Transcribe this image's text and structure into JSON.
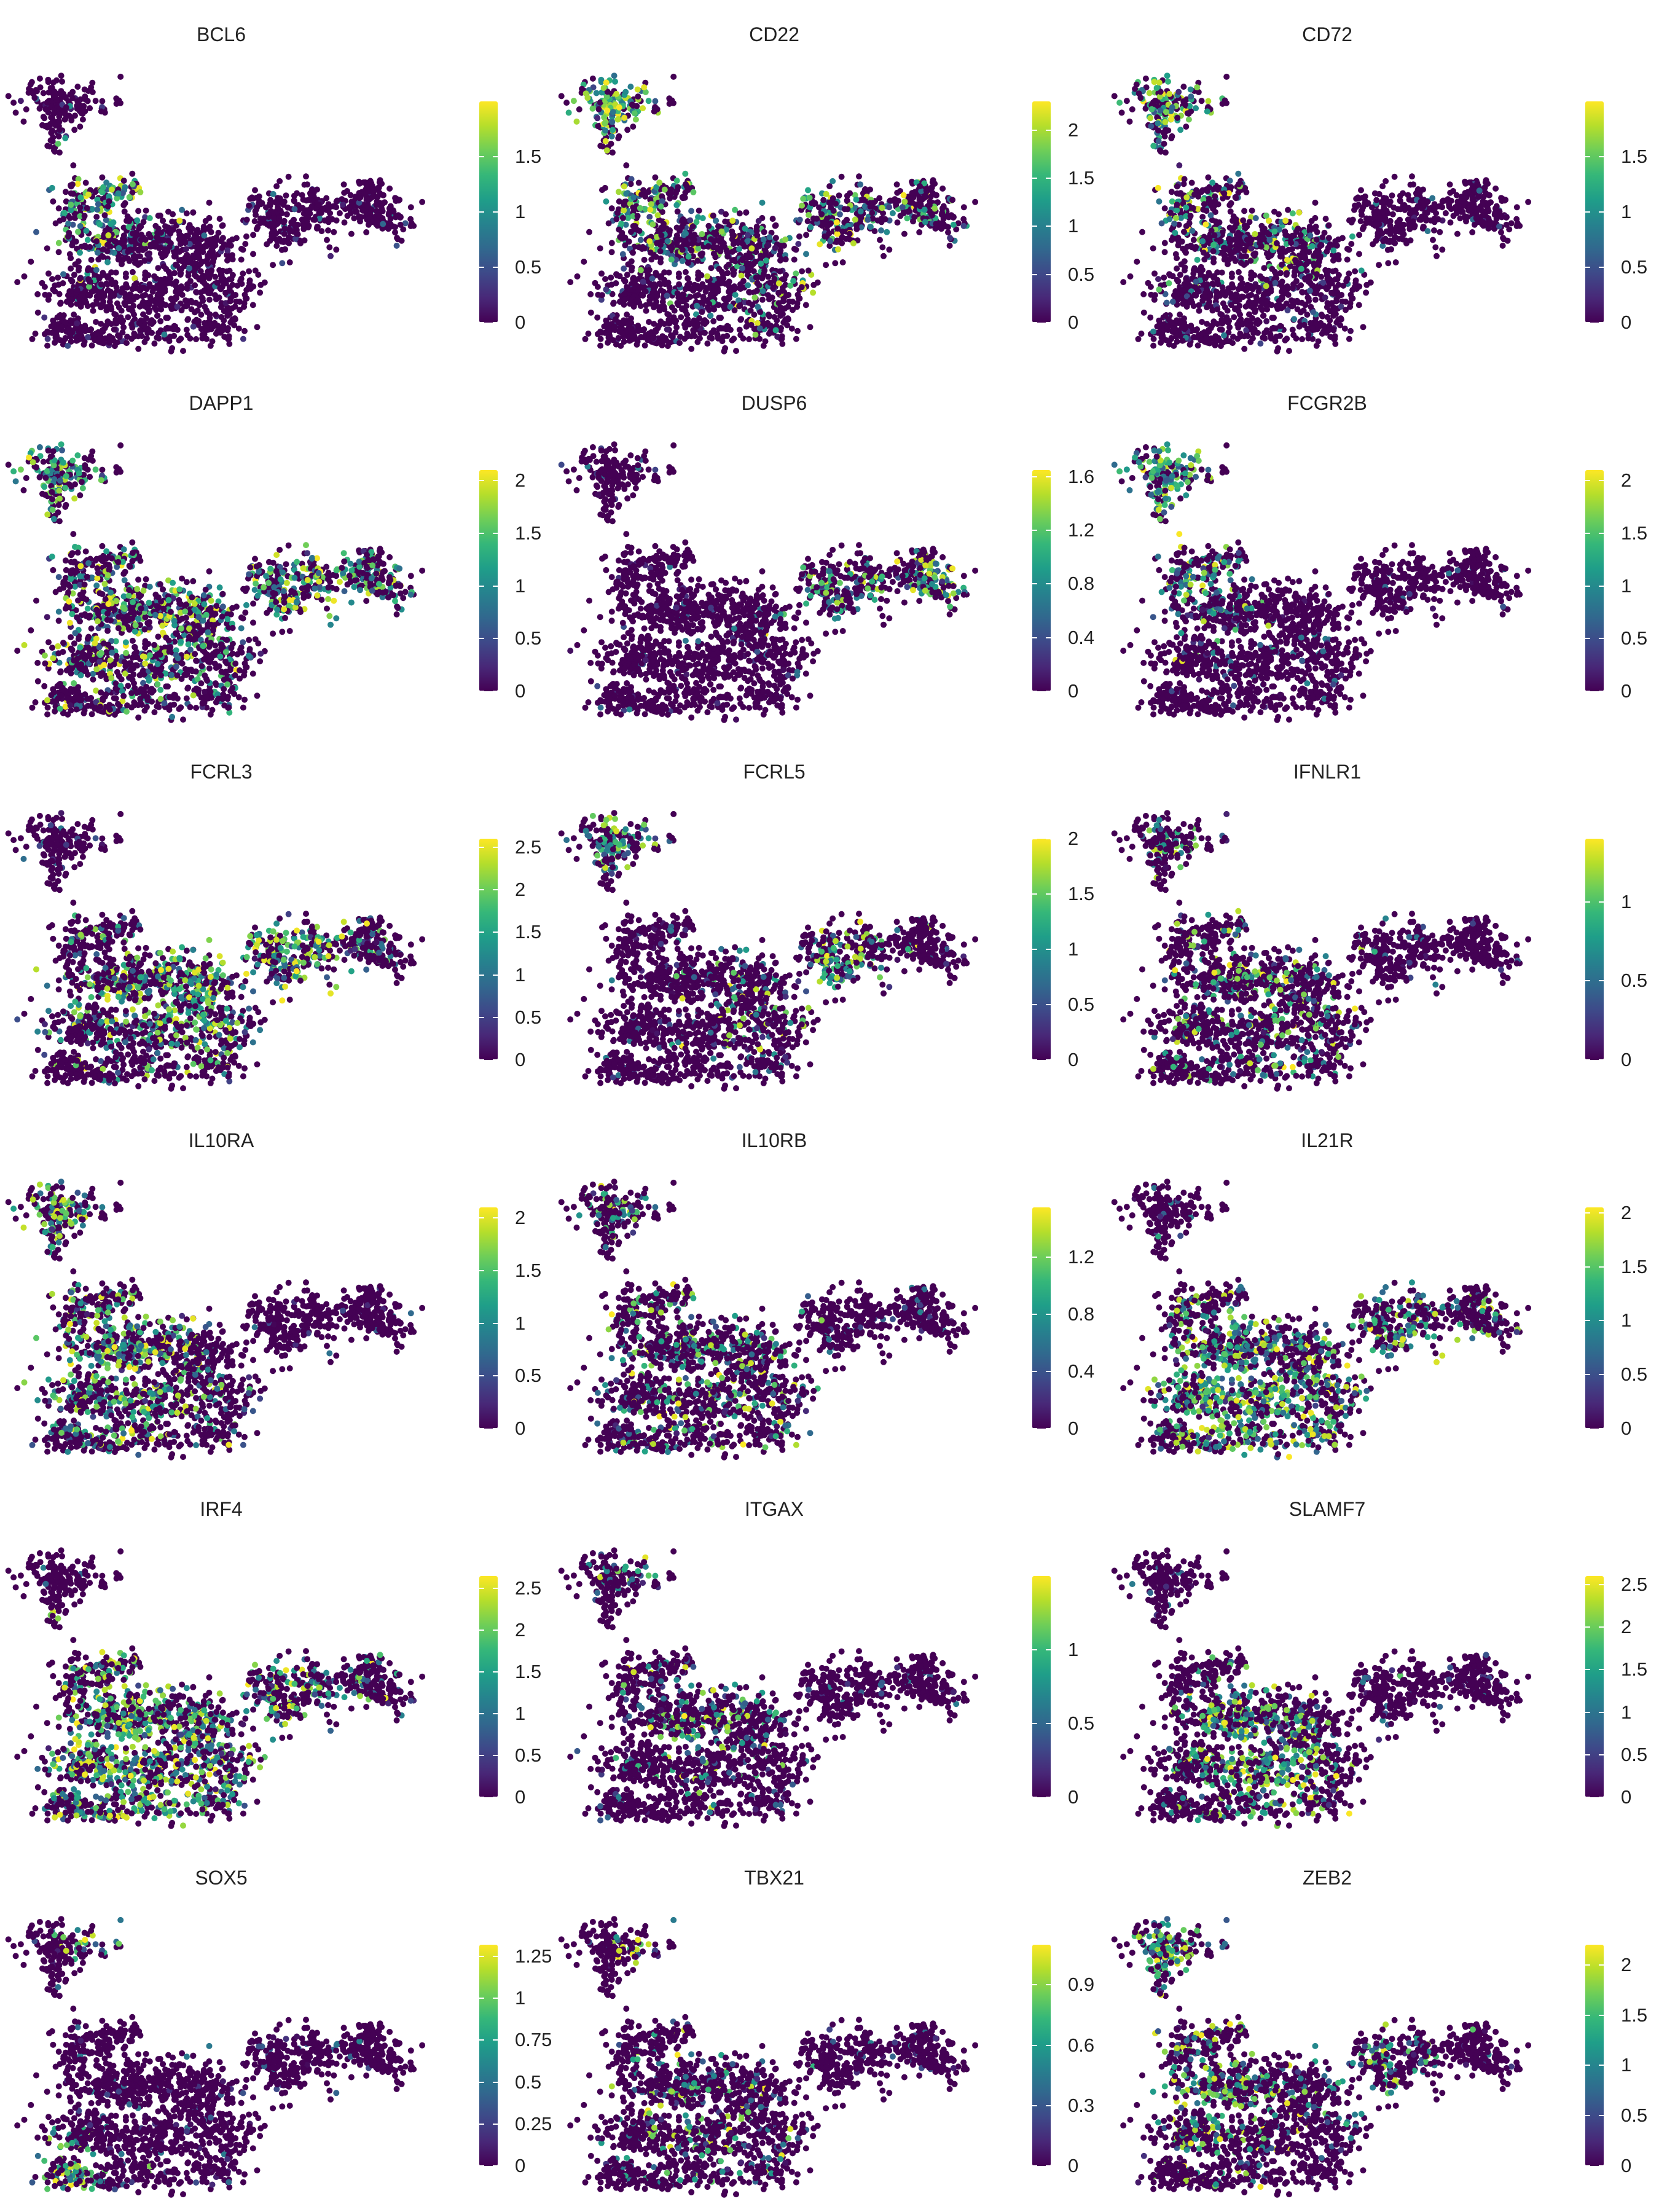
{
  "colormap": "viridis",
  "colors": {
    "viridis_stops": [
      "#440154",
      "#482878",
      "#3e4989",
      "#31688e",
      "#26828e",
      "#1f9e89",
      "#35b779",
      "#6ece58",
      "#b5de2b",
      "#fde725"
    ],
    "background": "#ffffff",
    "text": "#222222"
  },
  "chart_data": [
    {
      "type": "scatter",
      "title": "BCL6",
      "color_scale": {
        "min": 0,
        "max": 2.0,
        "ticks": [
          0,
          0.5,
          1,
          1.5
        ],
        "tick_labels": [
          "0",
          "0.5",
          "1",
          "1.5"
        ]
      }
    },
    {
      "type": "scatter",
      "title": "CD22",
      "color_scale": {
        "min": 0,
        "max": 2.3,
        "ticks": [
          0,
          0.5,
          1,
          1.5,
          2
        ],
        "tick_labels": [
          "0",
          "0.5",
          "1",
          "1.5",
          "2"
        ]
      }
    },
    {
      "type": "scatter",
      "title": "CD72",
      "color_scale": {
        "min": 0,
        "max": 2.0,
        "ticks": [
          0,
          0.5,
          1,
          1.5
        ],
        "tick_labels": [
          "0",
          "0.5",
          "1",
          "1.5"
        ]
      }
    },
    {
      "type": "scatter",
      "title": "DAPP1",
      "color_scale": {
        "min": 0,
        "max": 2.1,
        "ticks": [
          0,
          0.5,
          1,
          1.5,
          2
        ],
        "tick_labels": [
          "0",
          "0.5",
          "1",
          "1.5",
          "2"
        ]
      }
    },
    {
      "type": "scatter",
      "title": "DUSP6",
      "color_scale": {
        "min": 0,
        "max": 1.65,
        "ticks": [
          0,
          0.4,
          0.8,
          1.2,
          1.6
        ],
        "tick_labels": [
          "0",
          "0.4",
          "0.8",
          "1.2",
          "1.6"
        ]
      }
    },
    {
      "type": "scatter",
      "title": "FCGR2B",
      "color_scale": {
        "min": 0,
        "max": 2.1,
        "ticks": [
          0,
          0.5,
          1,
          1.5,
          2
        ],
        "tick_labels": [
          "0",
          "0.5",
          "1",
          "1.5",
          "2"
        ]
      }
    },
    {
      "type": "scatter",
      "title": "FCRL3",
      "color_scale": {
        "min": 0,
        "max": 2.6,
        "ticks": [
          0,
          0.5,
          1,
          1.5,
          2,
          2.5
        ],
        "tick_labels": [
          "0",
          "0.5",
          "1",
          "1.5",
          "2",
          "2.5"
        ]
      }
    },
    {
      "type": "scatter",
      "title": "FCRL5",
      "color_scale": {
        "min": 0,
        "max": 2.0,
        "ticks": [
          0,
          0.5,
          1,
          1.5,
          2
        ],
        "tick_labels": [
          "0",
          "0.5",
          "1",
          "1.5",
          "2"
        ]
      }
    },
    {
      "type": "scatter",
      "title": "IFNLR1",
      "color_scale": {
        "min": 0,
        "max": 1.4,
        "ticks": [
          0,
          0.5,
          1
        ],
        "tick_labels": [
          "0",
          "0.5",
          "1"
        ]
      }
    },
    {
      "type": "scatter",
      "title": "IL10RA",
      "color_scale": {
        "min": 0,
        "max": 2.1,
        "ticks": [
          0,
          0.5,
          1,
          1.5,
          2
        ],
        "tick_labels": [
          "0",
          "0.5",
          "1",
          "1.5",
          "2"
        ]
      }
    },
    {
      "type": "scatter",
      "title": "IL10RB",
      "color_scale": {
        "min": 0,
        "max": 1.55,
        "ticks": [
          0,
          0.4,
          0.8,
          1.2
        ],
        "tick_labels": [
          "0",
          "0.4",
          "0.8",
          "1.2"
        ]
      }
    },
    {
      "type": "scatter",
      "title": "IL21R",
      "color_scale": {
        "min": 0,
        "max": 2.05,
        "ticks": [
          0,
          0.5,
          1,
          1.5,
          2
        ],
        "tick_labels": [
          "0",
          "0.5",
          "1",
          "1.5",
          "2"
        ]
      }
    },
    {
      "type": "scatter",
      "title": "IRF4",
      "color_scale": {
        "min": 0,
        "max": 2.65,
        "ticks": [
          0,
          0.5,
          1,
          1.5,
          2,
          2.5
        ],
        "tick_labels": [
          "0",
          "0.5",
          "1",
          "1.5",
          "2",
          "2.5"
        ]
      }
    },
    {
      "type": "scatter",
      "title": "ITGAX",
      "color_scale": {
        "min": 0,
        "max": 1.5,
        "ticks": [
          0,
          0.5,
          1
        ],
        "tick_labels": [
          "0",
          "0.5",
          "1"
        ]
      }
    },
    {
      "type": "scatter",
      "title": "SLAMF7",
      "color_scale": {
        "min": 0,
        "max": 2.6,
        "ticks": [
          0,
          0.5,
          1,
          1.5,
          2,
          2.5
        ],
        "tick_labels": [
          "0",
          "0.5",
          "1",
          "1.5",
          "2",
          "2.5"
        ]
      }
    },
    {
      "type": "scatter",
      "title": "SOX5",
      "color_scale": {
        "min": 0,
        "max": 1.32,
        "ticks": [
          0,
          0.25,
          0.5,
          0.75,
          1,
          1.25
        ],
        "tick_labels": [
          "0",
          "0.25",
          "0.5",
          "0.75",
          "1",
          "1.25"
        ]
      }
    },
    {
      "type": "scatter",
      "title": "TBX21",
      "color_scale": {
        "min": 0,
        "max": 1.1,
        "ticks": [
          0,
          0.3,
          0.6,
          0.9
        ],
        "tick_labels": [
          "0",
          "0.3",
          "0.6",
          "0.9"
        ]
      }
    },
    {
      "type": "scatter",
      "title": "ZEB2",
      "color_scale": {
        "min": 0,
        "max": 2.2,
        "ticks": [
          0,
          0.5,
          1,
          1.5,
          2
        ],
        "tick_labels": [
          "0",
          "0.5",
          "1",
          "1.5",
          "2"
        ]
      }
    }
  ]
}
